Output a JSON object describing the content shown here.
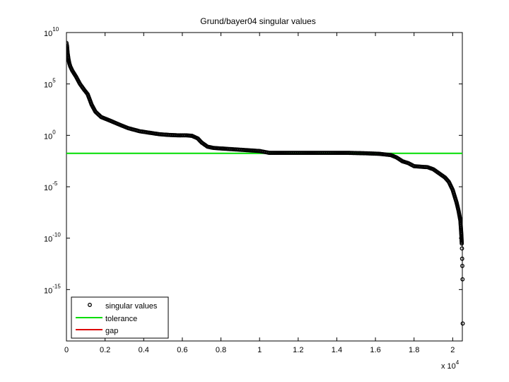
{
  "chart_data": {
    "type": "scatter",
    "title": "Grund/bayer04 singular values",
    "xlabel": "",
    "ylabel": "",
    "x_multiplier_label": {
      "base": "x 10",
      "exponent": "4"
    },
    "x_scale_factor": 10000,
    "xlim": [
      0,
      20500
    ],
    "ylim": [
      1e-20,
      10000000000.0
    ],
    "y_scale": "log",
    "grid": false,
    "legend_position": "bottom-left",
    "x_ticks": [
      "0",
      "0.2",
      "0.4",
      "0.6",
      "0.8",
      "1",
      "1.2",
      "1.4",
      "1.6",
      "1.8",
      "2"
    ],
    "y_ticks": [
      {
        "base": "10",
        "exponent": "10"
      },
      {
        "base": "10",
        "exponent": "5"
      },
      {
        "base": "10",
        "exponent": "0"
      },
      {
        "base": "10",
        "exponent": "-5"
      },
      {
        "base": "10",
        "exponent": "-10"
      },
      {
        "base": "10",
        "exponent": "-15"
      }
    ],
    "series": [
      {
        "name": "singular values",
        "marker": "circle",
        "color": "#000000",
        "points": [
          [
            0,
            1000000000.0
          ],
          [
            30,
            500000000.0
          ],
          [
            60,
            100000000.0
          ],
          [
            100,
            30000000.0
          ],
          [
            150,
            10000000.0
          ],
          [
            200,
            5000000.0
          ],
          [
            300,
            2000000.0
          ],
          [
            400,
            1000000.0
          ],
          [
            500,
            500000.0
          ],
          [
            700,
            100000.0
          ],
          [
            900,
            30000.0
          ],
          [
            1100,
            10000.0
          ],
          [
            1300,
            1000.0
          ],
          [
            1500,
            200
          ],
          [
            1800,
            60
          ],
          [
            2200,
            30
          ],
          [
            2800,
            10
          ],
          [
            3200,
            5
          ],
          [
            3800,
            2.5
          ],
          [
            4300,
            1.8
          ],
          [
            4800,
            1.3
          ],
          [
            5300,
            1.1
          ],
          [
            5800,
            1.0
          ],
          [
            6200,
            1.0
          ],
          [
            6500,
            0.9
          ],
          [
            6800,
            0.5
          ],
          [
            7000,
            0.2
          ],
          [
            7300,
            0.08
          ],
          [
            7600,
            0.06
          ],
          [
            8200,
            0.05
          ],
          [
            9000,
            0.04
          ],
          [
            10000,
            0.03
          ],
          [
            10500,
            0.02
          ],
          [
            11500,
            0.02
          ],
          [
            12500,
            0.02
          ],
          [
            13500,
            0.02
          ],
          [
            14500,
            0.02
          ],
          [
            15500,
            0.018
          ],
          [
            16200,
            0.016
          ],
          [
            16800,
            0.012
          ],
          [
            17100,
            0.007
          ],
          [
            17400,
            0.003
          ],
          [
            17700,
            0.002
          ],
          [
            18000,
            0.001
          ],
          [
            18300,
            0.0009
          ],
          [
            18700,
            0.0008
          ],
          [
            19000,
            0.0005
          ],
          [
            19300,
            0.0002
          ],
          [
            19600,
            8e-05
          ],
          [
            19800,
            3e-05
          ],
          [
            20000,
            5e-06
          ],
          [
            20200,
            3e-07
          ],
          [
            20300,
            5e-08
          ],
          [
            20400,
            5e-09
          ],
          [
            20450,
            2e-10
          ],
          [
            20470,
            3e-11
          ],
          [
            20480,
            1e-11
          ],
          [
            20490,
            1e-12
          ],
          [
            20500,
            2e-13
          ],
          [
            20510,
            1e-14
          ],
          [
            20520,
            5e-19
          ]
        ]
      },
      {
        "name": "tolerance",
        "color": "#00dd00",
        "value": 0.018
      },
      {
        "name": "gap",
        "color": "#dd0000",
        "points": []
      }
    ]
  }
}
